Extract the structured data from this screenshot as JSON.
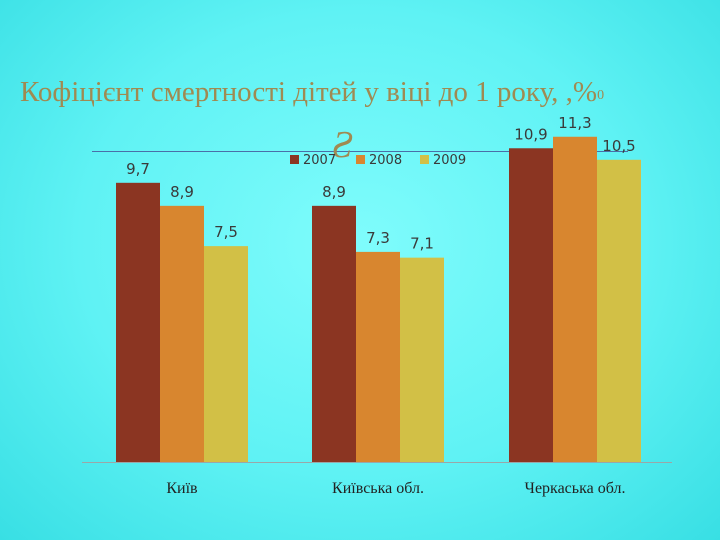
{
  "title": "Кофіцієнт смертності дітей у віці до 1 року, ,%",
  "title_unit": "0",
  "chart_data": {
    "type": "bar",
    "title": "Кофіцієнт смертності дітей у віці до 1 року, ,%0",
    "categories": [
      "Київ",
      "Київська обл.",
      "Черкаська обл."
    ],
    "series": [
      {
        "name": "2007",
        "color": "#8b3522",
        "values": [
          9.7,
          8.9,
          10.9
        ],
        "labels": [
          "9,7",
          "8,9",
          "10,9"
        ]
      },
      {
        "name": "2008",
        "color": "#d8862f",
        "values": [
          8.9,
          7.3,
          11.3
        ],
        "labels": [
          "8,9",
          "7,3",
          "11,3"
        ]
      },
      {
        "name": "2009",
        "color": "#d2c046",
        "values": [
          7.5,
          7.1,
          10.5
        ],
        "labels": [
          "7,5",
          "7,1",
          "10,5"
        ]
      }
    ],
    "ylim": [
      0,
      11.5
    ],
    "legend_position": "top",
    "grid": false
  }
}
